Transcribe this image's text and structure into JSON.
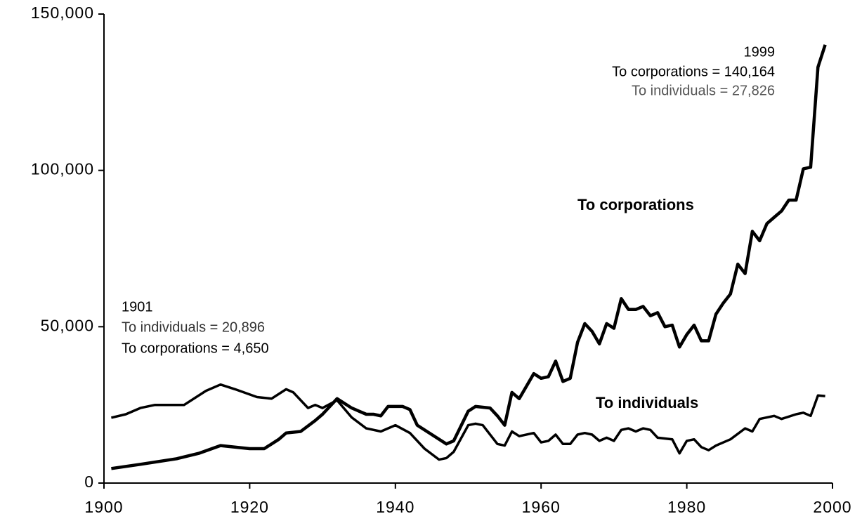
{
  "chart_data": {
    "type": "line",
    "xlim": [
      1900,
      2000
    ],
    "xticks": [
      1900,
      1920,
      1940,
      1960,
      1980,
      2000
    ],
    "ylim": [
      0,
      150000
    ],
    "yticks": [
      0,
      {
        "value": 50000,
        "label": "50,000"
      },
      {
        "value": 100000,
        "label": "100,000"
      },
      {
        "value": 150000,
        "label": "150,000"
      }
    ],
    "annotations": [
      "1999",
      "To corporations = 140,164",
      "To individuals = 27,826",
      "1901",
      "To individuals = 20,896",
      "To corporations = 4,650"
    ],
    "series": [
      {
        "name": "To corporations",
        "color": "#000000",
        "x": [
          1901,
          1905,
          1910,
          1913,
          1916,
          1920,
          1922,
          1924,
          1925,
          1927,
          1929,
          1930,
          1932,
          1934,
          1936,
          1937,
          1938,
          1939,
          1941,
          1942,
          1943,
          1945,
          1947,
          1948,
          1950,
          1951,
          1953,
          1954,
          1955,
          1956,
          1957,
          1958,
          1959,
          1960,
          1961,
          1962,
          1963,
          1964,
          1965,
          1966,
          1967,
          1968,
          1969,
          1970,
          1971,
          1972,
          1973,
          1974,
          1975,
          1976,
          1977,
          1978,
          1979,
          1980,
          1981,
          1982,
          1983,
          1984,
          1985,
          1986,
          1987,
          1988,
          1989,
          1990,
          1991,
          1992,
          1993,
          1994,
          1995,
          1996,
          1997,
          1998,
          1999
        ],
        "values": [
          4650,
          6000,
          7800,
          9500,
          12000,
          11000,
          11000,
          14000,
          16000,
          16500,
          20000,
          22000,
          27000,
          24000,
          22000,
          22000,
          21500,
          24500,
          24500,
          23500,
          18500,
          15500,
          12500,
          13500,
          23000,
          24500,
          24000,
          21500,
          18500,
          29000,
          27000,
          31000,
          35000,
          33500,
          34000,
          39000,
          32500,
          33500,
          45000,
          51000,
          48500,
          44500,
          51000,
          49500,
          59000,
          55500,
          55500,
          56500,
          53500,
          54500,
          50000,
          50500,
          43500,
          47500,
          50500,
          45500,
          45500,
          54000,
          57500,
          60500,
          70000,
          67000,
          80500,
          77500,
          83000,
          85000,
          87000,
          90500,
          90500,
          100500,
          101000,
          133000,
          140164
        ]
      },
      {
        "name": "To individuals",
        "color": "#000000",
        "x": [
          1901,
          1903,
          1905,
          1907,
          1911,
          1914,
          1916,
          1918,
          1921,
          1923,
          1925,
          1926,
          1928,
          1929,
          1930,
          1932,
          1934,
          1936,
          1938,
          1940,
          1942,
          1944,
          1946,
          1947,
          1948,
          1950,
          1951,
          1952,
          1954,
          1955,
          1956,
          1957,
          1959,
          1960,
          1961,
          1962,
          1963,
          1964,
          1965,
          1966,
          1967,
          1968,
          1969,
          1970,
          1971,
          1972,
          1973,
          1974,
          1975,
          1976,
          1978,
          1979,
          1980,
          1981,
          1982,
          1983,
          1984,
          1986,
          1988,
          1989,
          1990,
          1992,
          1993,
          1995,
          1996,
          1997,
          1998,
          1999
        ],
        "values": [
          20896,
          22000,
          24000,
          25000,
          25000,
          29500,
          31500,
          30000,
          27500,
          27000,
          30000,
          29000,
          24000,
          25000,
          24000,
          26500,
          21000,
          17500,
          16500,
          18500,
          16000,
          11000,
          7500,
          8000,
          10000,
          18500,
          19000,
          18500,
          12500,
          12000,
          16500,
          15000,
          16000,
          13000,
          13500,
          15500,
          12500,
          12500,
          15500,
          16000,
          15500,
          13500,
          14500,
          13500,
          17000,
          17500,
          16500,
          17500,
          17000,
          14500,
          14000,
          9500,
          13500,
          14000,
          11500,
          10500,
          12000,
          14000,
          17500,
          16500,
          20500,
          21500,
          20500,
          22000,
          22500,
          21500,
          28000,
          27826
        ]
      }
    ]
  }
}
